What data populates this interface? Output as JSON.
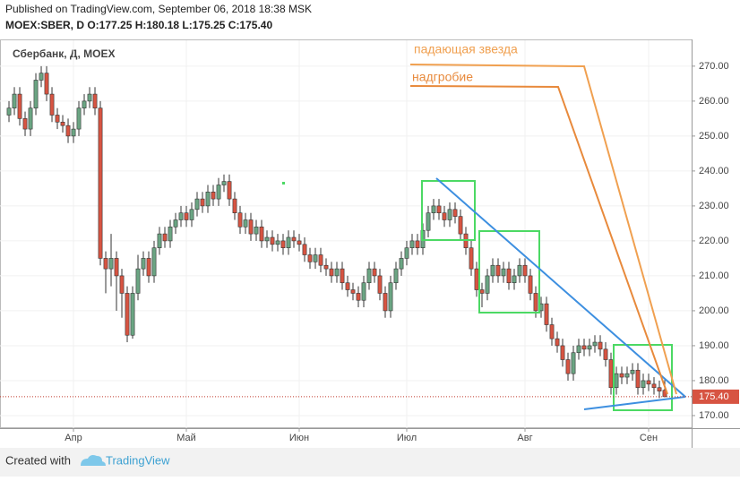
{
  "header": {
    "published": "Published on TradingView.com, September 06, 2018 18:38 MSK",
    "ticker": "MOEX:SBER, D  O:177.25 H:180.18 L:175.25 C:175.40"
  },
  "chart_data": {
    "type": "candlestick",
    "title": "Сбербанк, Д, MOEX",
    "up_color": "#6ba583",
    "down_color": "#d75442",
    "grid": true,
    "open": [
      256,
      258,
      262,
      255,
      252,
      258,
      266,
      268,
      262,
      256,
      254,
      253,
      250,
      252,
      258,
      260,
      262,
      258,
      215,
      212,
      215,
      210,
      205,
      193,
      205,
      212,
      215,
      210,
      218,
      222,
      220,
      224,
      226,
      228,
      226,
      229,
      232,
      230,
      234,
      232,
      236,
      237,
      232,
      228,
      224,
      226,
      222,
      224,
      220,
      221,
      219,
      220,
      218,
      221,
      220,
      219,
      216,
      214,
      216,
      213,
      212,
      210,
      212,
      208,
      206,
      205,
      203,
      208,
      212,
      210,
      205,
      200,
      208,
      212,
      215,
      218,
      220,
      218,
      223,
      228,
      230,
      228,
      226,
      229,
      227,
      222,
      218,
      212,
      206,
      205,
      210,
      213,
      210,
      212,
      208,
      210,
      213,
      210,
      205,
      200,
      202,
      196,
      192,
      190,
      186,
      182,
      188,
      190,
      189,
      190,
      191,
      189,
      186,
      178,
      182,
      181,
      182,
      183,
      178,
      180,
      179,
      178,
      177.25
    ],
    "high": [
      260,
      264,
      264,
      257,
      260,
      268,
      270,
      270,
      264,
      258,
      256,
      255,
      254,
      260,
      262,
      264,
      264,
      260,
      217,
      222,
      217,
      212,
      207,
      207,
      216,
      217,
      217,
      220,
      224,
      224,
      226,
      228,
      230,
      230,
      231,
      234,
      234,
      236,
      236,
      238,
      239,
      239,
      234,
      230,
      228,
      228,
      226,
      226,
      223,
      223,
      222,
      222,
      223,
      223,
      222,
      221,
      218,
      218,
      218,
      215,
      214,
      214,
      214,
      210,
      208,
      207,
      210,
      214,
      214,
      212,
      207,
      210,
      214,
      217,
      220,
      222,
      222,
      225,
      230,
      232,
      232,
      230,
      231,
      231,
      229,
      224,
      220,
      214,
      208,
      212,
      215,
      215,
      214,
      214,
      212,
      215,
      215,
      212,
      207,
      204,
      204,
      198,
      194,
      192,
      188,
      190,
      192,
      192,
      192,
      193,
      193,
      191,
      188,
      184,
      184,
      184,
      185,
      185,
      182,
      182,
      181,
      180,
      180.18
    ],
    "low": [
      254,
      256,
      253,
      250,
      250,
      256,
      264,
      260,
      254,
      252,
      251,
      248,
      248,
      250,
      256,
      258,
      256,
      213,
      205,
      207,
      200,
      198,
      191,
      192,
      203,
      210,
      208,
      208,
      216,
      218,
      218,
      222,
      224,
      224,
      224,
      227,
      228,
      228,
      230,
      230,
      234,
      230,
      226,
      222,
      222,
      220,
      220,
      218,
      218,
      217,
      217,
      216,
      216,
      218,
      217,
      214,
      212,
      212,
      211,
      210,
      208,
      208,
      206,
      204,
      203,
      201,
      201,
      206,
      208,
      203,
      198,
      198,
      206,
      210,
      213,
      216,
      216,
      216,
      221,
      226,
      226,
      224,
      224,
      225,
      220,
      216,
      210,
      204,
      201,
      203,
      208,
      208,
      208,
      206,
      206,
      208,
      208,
      203,
      198,
      198,
      194,
      190,
      188,
      184,
      180,
      180,
      186,
      187,
      187,
      188,
      187,
      184,
      176,
      176,
      179,
      179,
      180,
      176,
      176,
      177,
      176,
      175,
      175.25
    ],
    "close": [
      258,
      262,
      255,
      252,
      258,
      266,
      268,
      262,
      256,
      254,
      253,
      250,
      252,
      258,
      260,
      262,
      258,
      215,
      212,
      215,
      210,
      205,
      193,
      205,
      212,
      215,
      210,
      218,
      222,
      220,
      224,
      226,
      228,
      226,
      229,
      232,
      230,
      234,
      232,
      236,
      237,
      232,
      228,
      224,
      226,
      222,
      224,
      220,
      221,
      219,
      220,
      218,
      221,
      220,
      219,
      216,
      214,
      216,
      213,
      212,
      210,
      212,
      208,
      206,
      205,
      203,
      208,
      212,
      210,
      205,
      200,
      208,
      212,
      215,
      218,
      220,
      218,
      223,
      228,
      230,
      228,
      226,
      229,
      227,
      222,
      218,
      212,
      206,
      205,
      210,
      213,
      210,
      212,
      208,
      210,
      213,
      210,
      205,
      200,
      202,
      196,
      192,
      190,
      186,
      182,
      188,
      190,
      189,
      190,
      191,
      189,
      186,
      178,
      182,
      181,
      182,
      183,
      178,
      180,
      179,
      178,
      177,
      175.4
    ],
    "xlim": [
      -1.67,
      127
    ],
    "xticks": [
      {
        "value": 12,
        "label": "Апр"
      },
      {
        "value": 33,
        "label": "Май"
      },
      {
        "value": 54,
        "label": "Июн"
      },
      {
        "value": 74,
        "label": "Июл"
      },
      {
        "value": 96,
        "label": "Авг"
      },
      {
        "value": 119,
        "label": "Сен"
      }
    ],
    "ylim": [
      166.4,
      277.4
    ],
    "yticks": [
      {
        "value": 170,
        "label": "170.00"
      },
      {
        "value": 180,
        "label": "180.00"
      },
      {
        "value": 190,
        "label": "190.00"
      },
      {
        "value": 200,
        "label": "200.00"
      },
      {
        "value": 210,
        "label": "210.00"
      },
      {
        "value": 220,
        "label": "220.00"
      },
      {
        "value": 230,
        "label": "230.00"
      },
      {
        "value": 240,
        "label": "240.00"
      },
      {
        "value": 250,
        "label": "250.00"
      },
      {
        "value": 260,
        "label": "260.00"
      },
      {
        "value": 270,
        "label": "270.00"
      }
    ],
    "last_price": {
      "value": 175.4,
      "label": "175.40"
    },
    "annotations": [
      "падающая звезда",
      "надгробие"
    ]
  },
  "footer": {
    "created": "Created with",
    "brand": "TradingView"
  }
}
